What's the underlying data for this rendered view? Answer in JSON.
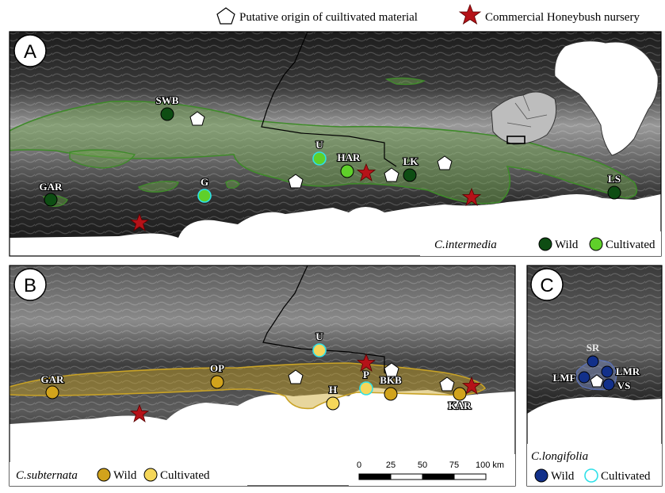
{
  "legend": {
    "origin_label": "Putative origin of cuiltivated material",
    "nursery_label": "Commercial Honeybush nursery"
  },
  "colors": {
    "intermedia_wild": "#0e4d13",
    "intermedia_cultivated": "#5fd02a",
    "cultivated_outline": "#2ee0e8",
    "subternata_wild": "#d1a31c",
    "subternata_cultivated": "#f5d75a",
    "longifolia_wild": "#12308a",
    "nursery_star": "#b51218",
    "intermedia_range": "#3f8a2a",
    "subternata_range": "#c9a326"
  },
  "panels": {
    "A": {
      "letter": "A",
      "species": "C.intermedia",
      "wild_label": "Wild",
      "cultivated_label": "Cultivated",
      "sites": [
        {
          "code": "SWB",
          "type": "wild"
        },
        {
          "code": "GAR",
          "type": "wild"
        },
        {
          "code": "U",
          "type": "cultivated"
        },
        {
          "code": "HAR",
          "type": "cultivated"
        },
        {
          "code": "G",
          "type": "cultivated"
        },
        {
          "code": "LK",
          "type": "wild"
        },
        {
          "code": "LS",
          "type": "wild"
        }
      ]
    },
    "B": {
      "letter": "B",
      "species": "C.subternata",
      "wild_label": "Wild",
      "cultivated_label": "Cultivated",
      "sites": [
        {
          "code": "GAR",
          "type": "wild"
        },
        {
          "code": "OP",
          "type": "wild"
        },
        {
          "code": "U",
          "type": "cultivated"
        },
        {
          "code": "H",
          "type": "cultivated"
        },
        {
          "code": "P",
          "type": "cultivated"
        },
        {
          "code": "BKB",
          "type": "wild"
        },
        {
          "code": "KAR",
          "type": "wild"
        }
      ],
      "scale_bar": {
        "ticks": [
          "0",
          "25",
          "50",
          "75",
          "100 km"
        ]
      }
    },
    "C": {
      "letter": "C",
      "species": "C.longifolia",
      "wild_label": "Wild",
      "cultivated_label": "Cultivated",
      "sites": [
        {
          "code": "SR",
          "type": "wild"
        },
        {
          "code": "LMF",
          "type": "wild"
        },
        {
          "code": "LMR",
          "type": "wild"
        },
        {
          "code": "VS",
          "type": "wild"
        }
      ]
    }
  }
}
